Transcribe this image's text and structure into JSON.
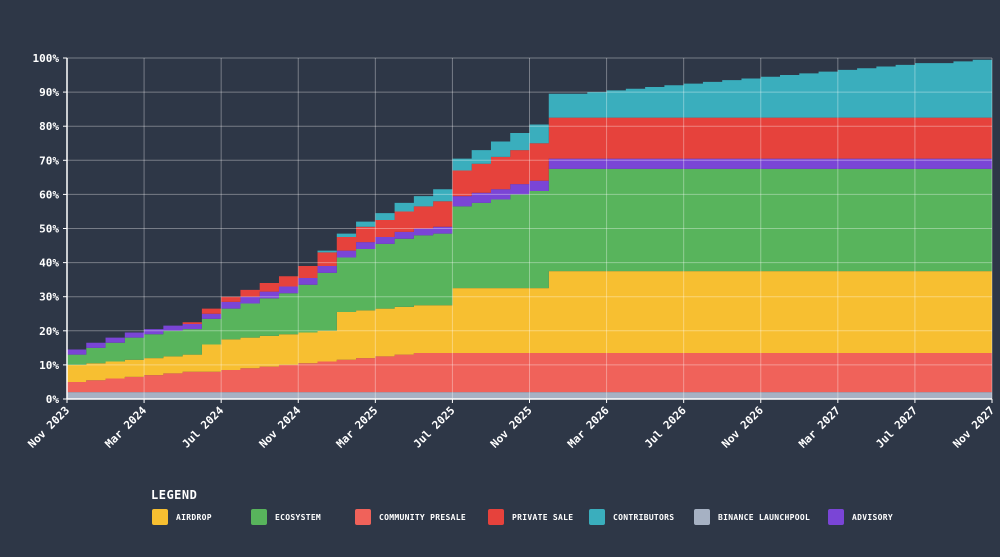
{
  "chart_data": {
    "type": "area",
    "stacked": true,
    "step": true,
    "grid": true,
    "x": [
      "Nov 2023",
      "Dec 2023",
      "Jan 2024",
      "Feb 2024",
      "Mar 2024",
      "Apr 2024",
      "May 2024",
      "Jun 2024",
      "Jul 2024",
      "Aug 2024",
      "Sep 2024",
      "Oct 2024",
      "Nov 2024",
      "Dec 2024",
      "Jan 2025",
      "Feb 2025",
      "Mar 2025",
      "Apr 2025",
      "May 2025",
      "Jun 2025",
      "Jul 2025",
      "Aug 2025",
      "Sep 2025",
      "Oct 2025",
      "Nov 2025",
      "Dec 2025",
      "Jan 2026",
      "Feb 2026",
      "Mar 2026",
      "Apr 2026",
      "May 2026",
      "Jun 2026",
      "Jul 2026",
      "Aug 2026",
      "Sep 2026",
      "Oct 2026",
      "Nov 2026",
      "Dec 2026",
      "Jan 2027",
      "Feb 2027",
      "Mar 2027",
      "Apr 2027",
      "May 2027",
      "Jun 2027",
      "Jul 2027",
      "Aug 2027",
      "Sep 2027",
      "Oct 2027",
      "Nov 2027"
    ],
    "xticks": [
      "Nov 2023",
      "Mar 2024",
      "Jul 2024",
      "Nov 2024",
      "Mar 2025",
      "Jul 2025",
      "Nov 2025",
      "Mar 2026",
      "Jul 2026",
      "Nov 2026",
      "Mar 2027",
      "Jul 2027",
      "Nov 2027"
    ],
    "yticks": [
      "0%",
      "10%",
      "20%",
      "30%",
      "40%",
      "50%",
      "60%",
      "70%",
      "80%",
      "90%",
      "100%"
    ],
    "ylim": [
      0,
      100
    ],
    "series": [
      {
        "name": "BINANCE LAUNCHPOOL",
        "color": "#a6b1c3",
        "values": [
          2,
          2,
          2,
          2,
          2,
          2,
          2,
          2,
          2,
          2,
          2,
          2,
          2,
          2,
          2,
          2,
          2,
          2,
          2,
          2,
          2,
          2,
          2,
          2,
          2,
          2,
          2,
          2,
          2,
          2,
          2,
          2,
          2,
          2,
          2,
          2,
          2,
          2,
          2,
          2,
          2,
          2,
          2,
          2,
          2,
          2,
          2,
          2,
          2
        ]
      },
      {
        "name": "COMMUNITY PRESALE",
        "color": "#f0625a",
        "values": [
          3,
          3.5,
          4,
          4.5,
          5,
          5.5,
          6,
          6,
          6.5,
          7,
          7.5,
          8,
          8.5,
          9,
          9.5,
          10,
          10.5,
          11,
          11.5,
          11.5,
          11.5,
          11.5,
          11.5,
          11.5,
          11.5,
          11.5,
          11.5,
          11.5,
          11.5,
          11.5,
          11.5,
          11.5,
          11.5,
          11.5,
          11.5,
          11.5,
          11.5,
          11.5,
          11.5,
          11.5,
          11.5,
          11.5,
          11.5,
          11.5,
          11.5,
          11.5,
          11.5,
          11.5,
          11.5
        ]
      },
      {
        "name": "AIRDROP",
        "color": "#f7bf31",
        "values": [
          5,
          5,
          5,
          5,
          5,
          5,
          5,
          8,
          9,
          9,
          9,
          9,
          9,
          9,
          14,
          14,
          14,
          14,
          14,
          14,
          19,
          19,
          19,
          19,
          19,
          24,
          24,
          24,
          24,
          24,
          24,
          24,
          24,
          24,
          24,
          24,
          24,
          24,
          24,
          24,
          24,
          24,
          24,
          24,
          24,
          24,
          24,
          24,
          24
        ]
      },
      {
        "name": "ECOSYSTEM",
        "color": "#58b45c",
        "values": [
          3,
          4.5,
          5.5,
          6.5,
          7,
          7.5,
          7.5,
          7.5,
          9,
          10,
          11,
          12,
          14,
          17,
          16,
          18,
          19,
          20,
          20.5,
          21,
          24,
          25,
          26,
          27.5,
          28.5,
          30,
          30,
          30,
          30,
          30,
          30,
          30,
          30,
          30,
          30,
          30,
          30,
          30,
          30,
          30,
          30,
          30,
          30,
          30,
          30,
          30,
          30,
          30,
          30
        ]
      },
      {
        "name": "ADVISORY",
        "color": "#7a45d6",
        "values": [
          1.5,
          1.5,
          1.5,
          1.5,
          1.5,
          1.5,
          1.5,
          1.5,
          2,
          2,
          2,
          2,
          2,
          2,
          2,
          2,
          2,
          2,
          2,
          2,
          3,
          3,
          3,
          3,
          3,
          3,
          3,
          3,
          3,
          3,
          3,
          3,
          3,
          3,
          3,
          3,
          3,
          3,
          3,
          3,
          3,
          3,
          3,
          3,
          3,
          3,
          3,
          3,
          3
        ]
      },
      {
        "name": "PRIVATE SALE",
        "color": "#e6423c",
        "values": [
          0,
          0,
          0,
          0,
          0,
          0,
          0.5,
          1.5,
          1.5,
          2,
          2.5,
          3,
          3.5,
          4,
          4,
          4.5,
          5,
          6,
          6.5,
          7.5,
          7.5,
          8.5,
          9.5,
          10,
          11,
          12,
          12,
          12,
          12,
          12,
          12,
          12,
          12,
          12,
          12,
          12,
          12,
          12,
          12,
          12,
          12,
          12,
          12,
          12,
          12,
          12,
          12,
          12,
          12
        ]
      },
      {
        "name": "CONTRIBUTORS",
        "color": "#3aaebd",
        "values": [
          0,
          0,
          0,
          0,
          0,
          0,
          0,
          0,
          0,
          0,
          0,
          0,
          0,
          0.5,
          1,
          1.5,
          2,
          2.5,
          3,
          3.5,
          3.5,
          4,
          4.5,
          5,
          5.5,
          7,
          7,
          7.5,
          8,
          8.5,
          9,
          9.5,
          10,
          10.5,
          11,
          11.5,
          12,
          12.5,
          13,
          13.5,
          14,
          14.5,
          15,
          15.5,
          16,
          16,
          16.5,
          17,
          17
        ]
      }
    ],
    "legend_title": "LEGEND",
    "legend": [
      {
        "label": "AIRDROP",
        "color": "#f7bf31"
      },
      {
        "label": "ECOSYSTEM",
        "color": "#58b45c"
      },
      {
        "label": "COMMUNITY PRESALE",
        "color": "#f0625a"
      },
      {
        "label": "PRIVATE SALE",
        "color": "#e6423c"
      },
      {
        "label": "CONTRIBUTORS",
        "color": "#3aaebd"
      },
      {
        "label": "BINANCE LAUNCHPOOL",
        "color": "#a6b1c3"
      },
      {
        "label": "ADVISORY",
        "color": "#7a45d6"
      }
    ],
    "legend_placement": "bottom"
  }
}
